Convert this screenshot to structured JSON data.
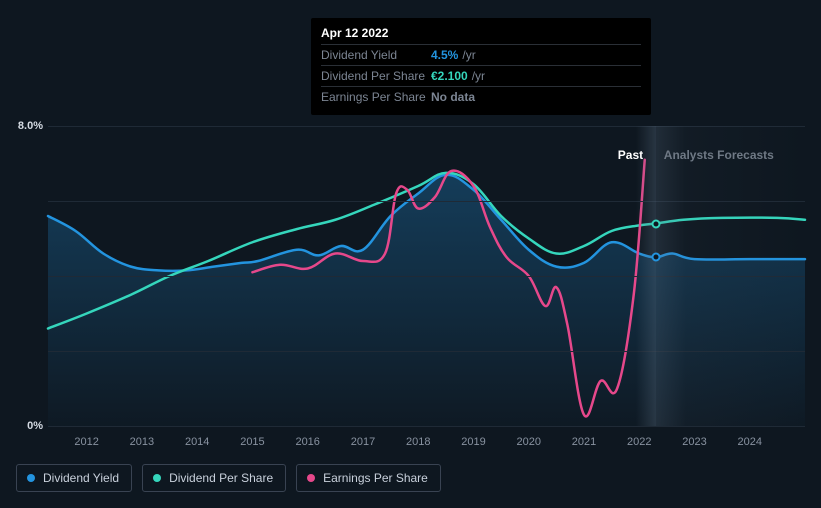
{
  "tooltip": {
    "date": "Apr 12 2022",
    "rows": [
      {
        "label": "Dividend Yield",
        "value": "4.5%",
        "unit": "/yr",
        "color": "#2394df"
      },
      {
        "label": "Dividend Per Share",
        "value": "€2.100",
        "unit": "/yr",
        "color": "#35d6bc"
      },
      {
        "label": "Earnings Per Share",
        "value": "No data",
        "unit": "",
        "color": "#7c8593"
      }
    ]
  },
  "chart": {
    "type": "line",
    "y_axis": {
      "min": 0,
      "max": 8,
      "unit": "%",
      "ticks": [
        0,
        8
      ],
      "tick_labels": [
        "0%",
        "8.0%"
      ],
      "grid_values": [
        2,
        4,
        6
      ]
    },
    "x_axis": {
      "min": 2011.3,
      "max": 2025.0,
      "ticks": [
        2012,
        2013,
        2014,
        2015,
        2016,
        2017,
        2018,
        2019,
        2020,
        2021,
        2022,
        2023,
        2024
      ],
      "split_at": 2022.3,
      "past_label": "Past",
      "future_label": "Analysts Forecasts"
    },
    "background_color": "#0e1720",
    "grid_color": "#1f2a36",
    "area_fill_top": "rgba(35,148,223,0.30)",
    "area_fill_bottom": "rgba(35,148,223,0.02)",
    "series": [
      {
        "name": "Dividend Yield",
        "color": "#2394df",
        "stroke_width": 2.5,
        "area": true,
        "marker_at_split": true,
        "points": [
          [
            2011.3,
            5.6
          ],
          [
            2011.8,
            5.2
          ],
          [
            2012.3,
            4.6
          ],
          [
            2012.8,
            4.25
          ],
          [
            2013.3,
            4.15
          ],
          [
            2013.8,
            4.15
          ],
          [
            2014.3,
            4.25
          ],
          [
            2014.8,
            4.35
          ],
          [
            2015.1,
            4.4
          ],
          [
            2015.8,
            4.7
          ],
          [
            2016.2,
            4.55
          ],
          [
            2016.6,
            4.8
          ],
          [
            2017.0,
            4.7
          ],
          [
            2017.5,
            5.6
          ],
          [
            2018.0,
            6.2
          ],
          [
            2018.5,
            6.7
          ],
          [
            2019.0,
            6.3
          ],
          [
            2019.5,
            5.5
          ],
          [
            2020.0,
            4.7
          ],
          [
            2020.5,
            4.25
          ],
          [
            2021.0,
            4.35
          ],
          [
            2021.5,
            4.9
          ],
          [
            2022.0,
            4.6
          ],
          [
            2022.3,
            4.5
          ],
          [
            2022.6,
            4.6
          ],
          [
            2023.0,
            4.45
          ],
          [
            2024.0,
            4.45
          ],
          [
            2025.0,
            4.45
          ]
        ]
      },
      {
        "name": "Dividend Per Share",
        "color": "#35d6bc",
        "stroke_width": 2.5,
        "area": false,
        "marker_at_split": true,
        "points": [
          [
            2011.3,
            2.6
          ],
          [
            2012.0,
            3.0
          ],
          [
            2012.8,
            3.5
          ],
          [
            2013.5,
            4.0
          ],
          [
            2014.2,
            4.4
          ],
          [
            2015.0,
            4.9
          ],
          [
            2015.8,
            5.25
          ],
          [
            2016.5,
            5.5
          ],
          [
            2017.2,
            5.9
          ],
          [
            2018.0,
            6.4
          ],
          [
            2018.5,
            6.75
          ],
          [
            2019.0,
            6.45
          ],
          [
            2019.5,
            5.6
          ],
          [
            2020.0,
            5.0
          ],
          [
            2020.5,
            4.6
          ],
          [
            2021.0,
            4.8
          ],
          [
            2021.5,
            5.2
          ],
          [
            2022.0,
            5.35
          ],
          [
            2022.3,
            5.4
          ],
          [
            2022.8,
            5.5
          ],
          [
            2023.5,
            5.55
          ],
          [
            2024.5,
            5.55
          ],
          [
            2025.0,
            5.5
          ]
        ]
      },
      {
        "name": "Earnings Per Share",
        "color": "#e6488b",
        "stroke_width": 2.5,
        "area": false,
        "marker_at_split": false,
        "points": [
          [
            2015.0,
            4.1
          ],
          [
            2015.5,
            4.3
          ],
          [
            2016.0,
            4.2
          ],
          [
            2016.5,
            4.6
          ],
          [
            2017.0,
            4.4
          ],
          [
            2017.4,
            4.6
          ],
          [
            2017.6,
            6.2
          ],
          [
            2017.8,
            6.3
          ],
          [
            2018.0,
            5.8
          ],
          [
            2018.3,
            6.1
          ],
          [
            2018.6,
            6.8
          ],
          [
            2019.0,
            6.4
          ],
          [
            2019.3,
            5.3
          ],
          [
            2019.6,
            4.5
          ],
          [
            2020.0,
            4.0
          ],
          [
            2020.3,
            3.2
          ],
          [
            2020.5,
            3.7
          ],
          [
            2020.7,
            2.7
          ],
          [
            2021.0,
            0.3
          ],
          [
            2021.3,
            1.2
          ],
          [
            2021.6,
            1.0
          ],
          [
            2021.9,
            3.5
          ],
          [
            2022.1,
            7.1
          ]
        ]
      }
    ]
  },
  "legend": {
    "items": [
      {
        "label": "Dividend Yield",
        "color": "#2394df"
      },
      {
        "label": "Dividend Per Share",
        "color": "#35d6bc"
      },
      {
        "label": "Earnings Per Share",
        "color": "#e6488b"
      }
    ]
  }
}
